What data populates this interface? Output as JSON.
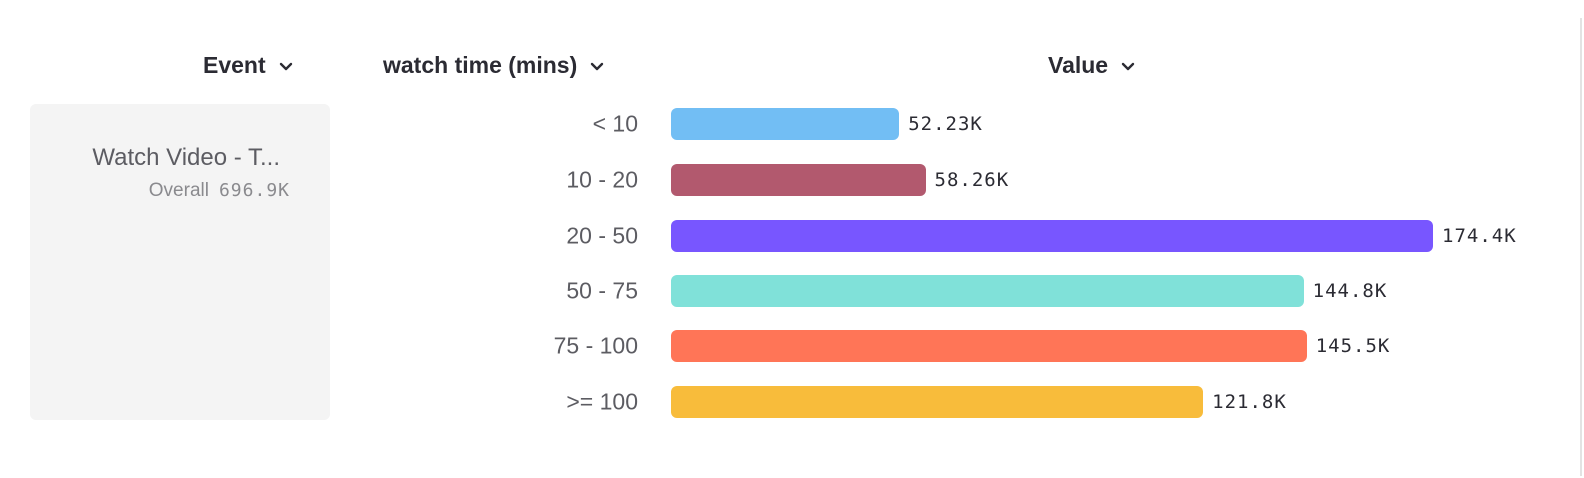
{
  "headers": {
    "event": "Event",
    "breakdown": "watch time (mins)",
    "value": "Value"
  },
  "event_card": {
    "name": "Watch Video - T...",
    "overall_label": "Overall",
    "overall_value": "696.9K"
  },
  "chart_data": {
    "type": "bar",
    "orientation": "horizontal",
    "categories": [
      "< 10",
      "10 - 20",
      "20 - 50",
      "50 - 75",
      "75 - 100",
      ">= 100"
    ],
    "values": [
      52230,
      58260,
      174400,
      144800,
      145500,
      121800
    ],
    "labels": [
      "52.23K",
      "58.26K",
      "174.4K",
      "144.8K",
      "145.5K",
      "121.8K"
    ],
    "colors": [
      "#72bef4",
      "#b2596e",
      "#7856ff",
      "#80e1d9",
      "#ff7557",
      "#f8bc3b"
    ],
    "xlim": [
      0,
      174400
    ]
  }
}
